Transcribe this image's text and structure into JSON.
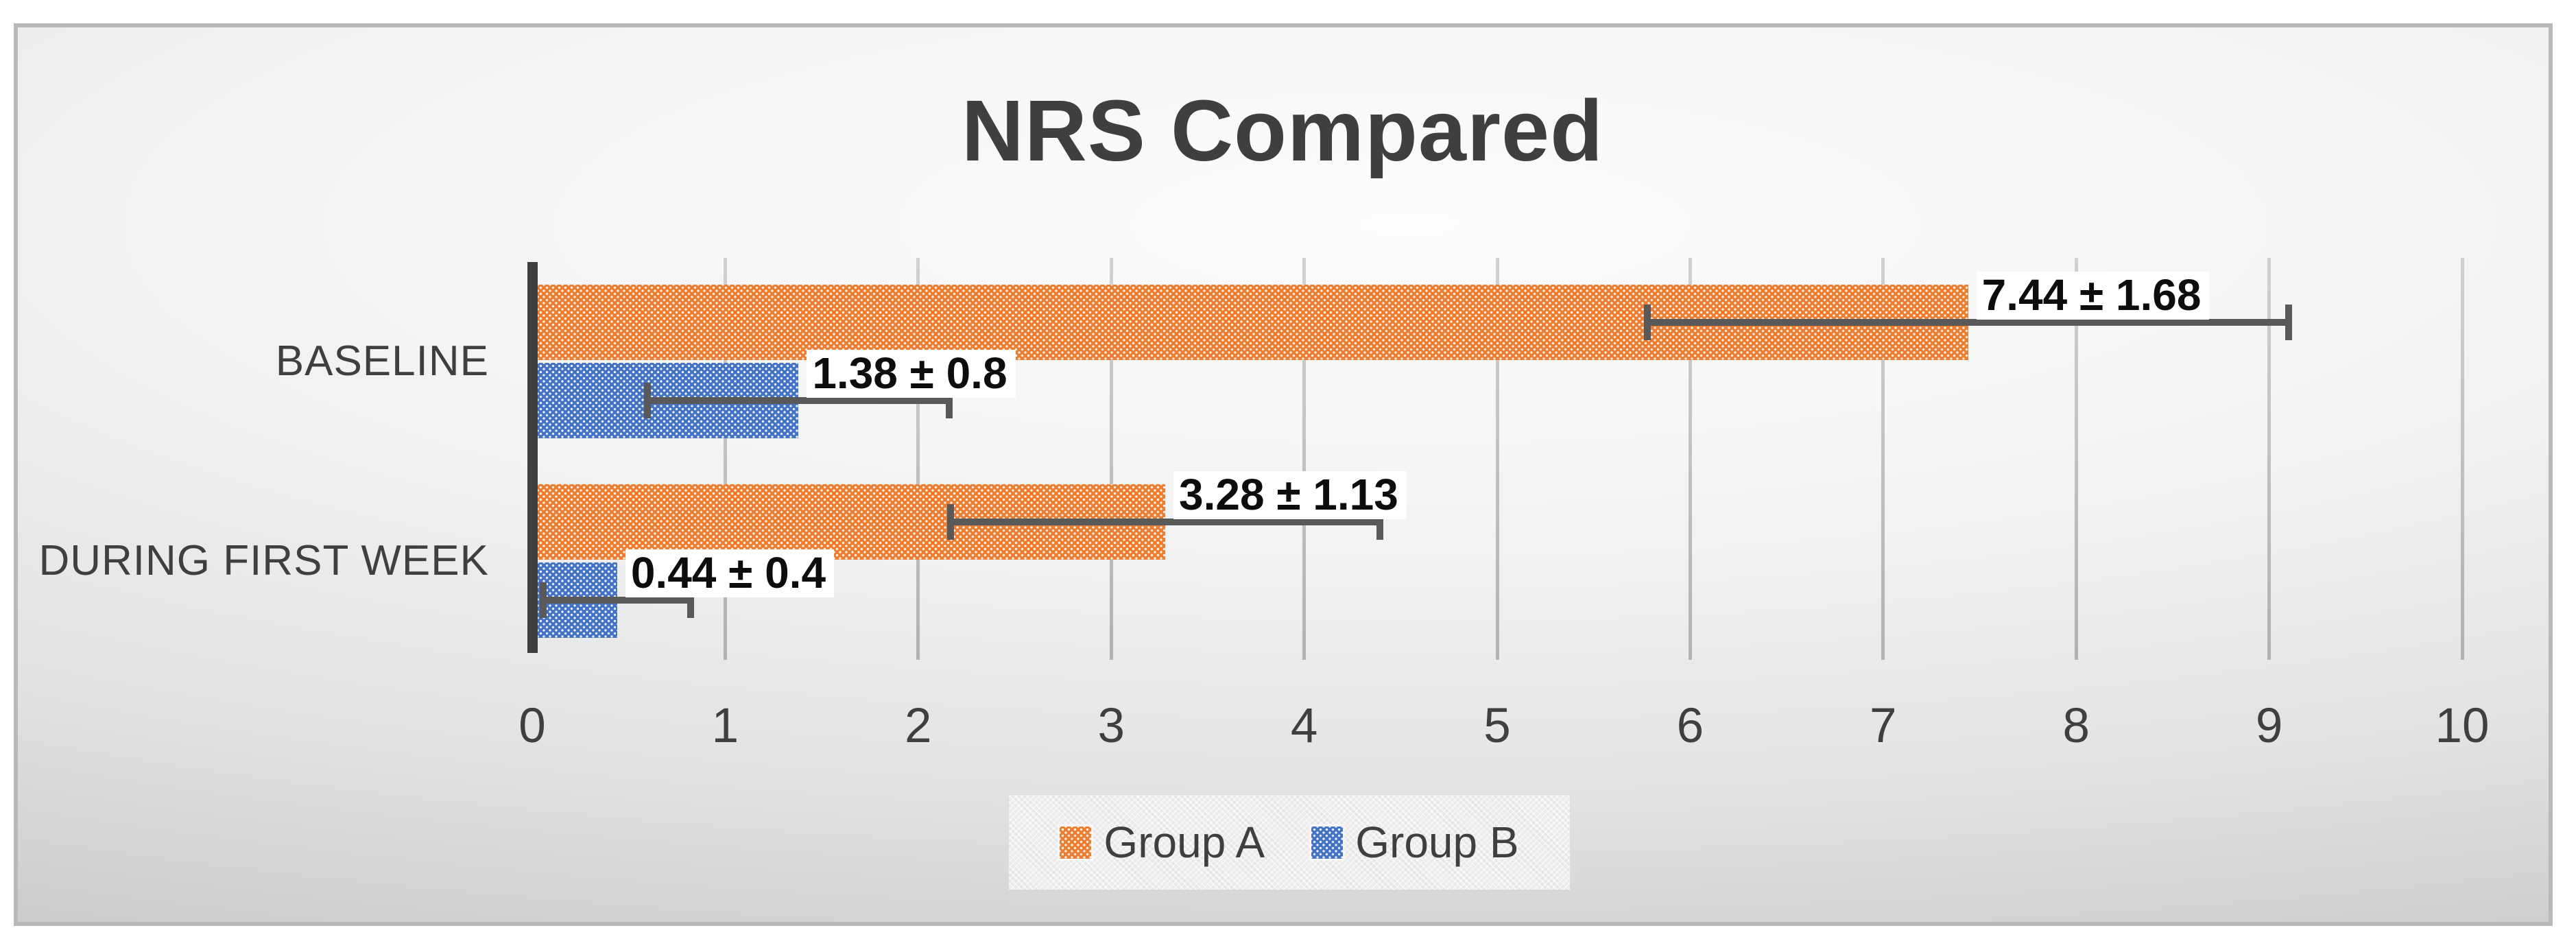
{
  "chart_data": {
    "type": "bar",
    "orientation": "horizontal",
    "title": "NRS Compared",
    "categories": [
      "BASELINE",
      "DURING FIRST WEEK"
    ],
    "series": [
      {
        "name": "Group A",
        "color": "#ED7D31",
        "values": [
          7.44,
          3.28
        ],
        "errors": [
          1.68,
          1.13
        ],
        "data_labels": [
          "7.44 ± 1.68",
          "3.28 ± 1.13"
        ]
      },
      {
        "name": "Group B",
        "color": "#4472C4",
        "values": [
          1.38,
          0.44
        ],
        "errors": [
          0.8,
          0.4
        ],
        "data_labels": [
          "1.38 ± 0.8",
          "0.44 ± 0.4"
        ]
      }
    ],
    "x_axis": {
      "min": 0,
      "max": 10,
      "tick_step": 1,
      "ticks": [
        "0",
        "1",
        "2",
        "3",
        "4",
        "5",
        "6",
        "7",
        "8",
        "9",
        "10"
      ]
    },
    "grid": true,
    "legend_position": "bottom",
    "error_bar_color": "#595959",
    "axis_line_color": "#3f3f3f",
    "pattern_fill": "dotted"
  }
}
